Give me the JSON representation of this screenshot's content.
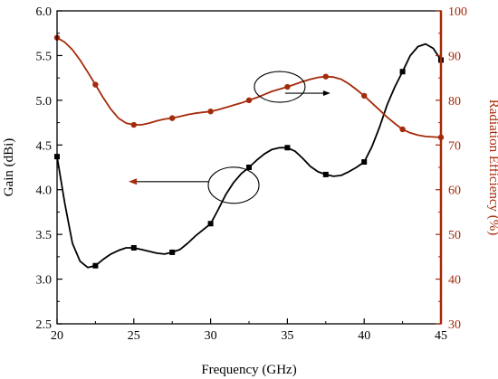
{
  "chart_data": {
    "type": "line",
    "xlabel": "Frequency (GHz)",
    "ylabel": "Gain (dBi)",
    "y2label": "Radiation Efficiency (%)",
    "xlim": [
      20,
      45
    ],
    "ylim": [
      2.5,
      6.0
    ],
    "y2lim": [
      30,
      100
    ],
    "x_ticks": [
      "20",
      "25",
      "30",
      "35",
      "40",
      "45"
    ],
    "y_ticks": [
      "2.5",
      "3.0",
      "3.5",
      "4.0",
      "4.5",
      "5.0",
      "5.5",
      "6.0"
    ],
    "y2_ticks": [
      "30",
      "40",
      "50",
      "60",
      "70",
      "80",
      "90",
      "100"
    ],
    "grid": false,
    "colors": {
      "gain": "#000000",
      "efficiency": "#a52a0a",
      "right_axis": "#a52a0a"
    },
    "series": [
      {
        "axis": "left",
        "color": "#000000",
        "marker": "square",
        "x": [
          20.0,
          22.5,
          25.0,
          27.5,
          30.0,
          32.5,
          35.0,
          37.5,
          40.0,
          42.5,
          45.0
        ],
        "values": [
          4.37,
          3.15,
          3.35,
          3.3,
          3.62,
          4.25,
          4.47,
          4.17,
          4.31,
          5.32,
          5.45
        ],
        "curve_x": [
          20.0,
          20.5,
          21.0,
          21.5,
          22.0,
          22.5,
          23.0,
          23.5,
          24.0,
          24.5,
          25.0,
          25.5,
          26.0,
          26.5,
          27.0,
          27.5,
          28.0,
          28.5,
          29.0,
          29.5,
          30.0,
          30.5,
          31.0,
          31.5,
          32.0,
          32.5,
          33.0,
          33.5,
          34.0,
          34.5,
          35.0,
          35.5,
          36.0,
          36.5,
          37.0,
          37.5,
          38.0,
          38.5,
          39.0,
          39.5,
          40.0,
          40.5,
          41.0,
          41.5,
          42.0,
          42.5,
          43.0,
          43.5,
          44.0,
          44.5,
          45.0
        ],
        "curve_y": [
          4.37,
          3.85,
          3.4,
          3.2,
          3.13,
          3.15,
          3.22,
          3.28,
          3.32,
          3.35,
          3.35,
          3.33,
          3.31,
          3.29,
          3.28,
          3.3,
          3.33,
          3.4,
          3.48,
          3.55,
          3.62,
          3.78,
          3.95,
          4.08,
          4.18,
          4.25,
          4.33,
          4.4,
          4.45,
          4.47,
          4.47,
          4.43,
          4.35,
          4.26,
          4.2,
          4.17,
          4.15,
          4.16,
          4.2,
          4.25,
          4.31,
          4.48,
          4.7,
          4.95,
          5.15,
          5.32,
          5.5,
          5.6,
          5.63,
          5.58,
          5.45
        ]
      },
      {
        "axis": "right",
        "color": "#a52a0a",
        "marker": "circle",
        "x": [
          20.0,
          22.5,
          25.0,
          27.5,
          30.0,
          32.5,
          35.0,
          37.5,
          40.0,
          42.5,
          45.0
        ],
        "values": [
          94,
          83.5,
          74.5,
          76,
          77.5,
          80,
          83,
          85.3,
          81,
          73.5,
          71.7
        ],
        "curve_x": [
          20.0,
          20.5,
          21.0,
          21.5,
          22.0,
          22.5,
          23.0,
          23.5,
          24.0,
          24.5,
          25.0,
          25.5,
          26.0,
          26.5,
          27.0,
          27.5,
          28.0,
          28.5,
          29.0,
          29.5,
          30.0,
          30.5,
          31.0,
          31.5,
          32.0,
          32.5,
          33.0,
          33.5,
          34.0,
          34.5,
          35.0,
          35.5,
          36.0,
          36.5,
          37.0,
          37.5,
          38.0,
          38.5,
          39.0,
          39.5,
          40.0,
          40.5,
          41.0,
          41.5,
          42.0,
          42.5,
          43.0,
          43.5,
          44.0,
          44.5,
          45.0
        ],
        "curve_y": [
          94.0,
          93.0,
          91.3,
          89.0,
          86.3,
          83.5,
          80.6,
          78.0,
          76.0,
          74.9,
          74.5,
          74.5,
          74.9,
          75.4,
          75.8,
          76.0,
          76.4,
          76.8,
          77.1,
          77.3,
          77.5,
          77.9,
          78.4,
          78.9,
          79.4,
          80.0,
          80.6,
          81.3,
          82.0,
          82.5,
          83.0,
          83.6,
          84.2,
          84.7,
          85.1,
          85.3,
          85.2,
          84.7,
          83.7,
          82.4,
          81.0,
          79.4,
          77.8,
          76.2,
          74.8,
          73.5,
          72.7,
          72.2,
          71.9,
          71.8,
          71.7
        ]
      }
    ],
    "annotations": [
      {
        "shape": "ellipse",
        "x": 34.5,
        "y": 5.15,
        "axis": "left",
        "arrow_to_axis": "right"
      },
      {
        "shape": "ellipse",
        "x": 31.5,
        "y": 4.05,
        "axis": "left",
        "arrow_to_axis": "left"
      }
    ]
  }
}
